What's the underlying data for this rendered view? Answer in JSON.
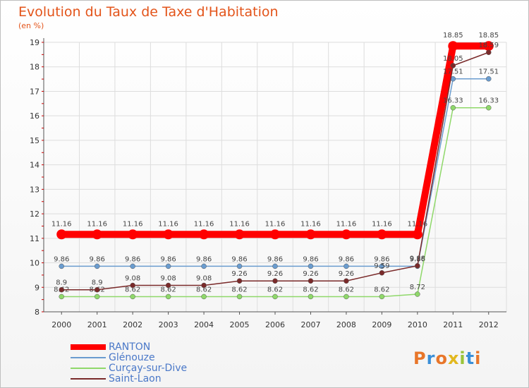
{
  "chart_data": {
    "type": "line",
    "title": "Evolution du Taux de Taxe d'Habitation",
    "unit_label": "(en %)",
    "x": [
      "2000",
      "2001",
      "2002",
      "2003",
      "2004",
      "2005",
      "2006",
      "2007",
      "2008",
      "2009",
      "2010",
      "2011",
      "2012"
    ],
    "ylim": [
      8,
      19
    ],
    "yticks": [
      8,
      9,
      10,
      11,
      12,
      13,
      14,
      15,
      16,
      17,
      18,
      19
    ],
    "grid": true,
    "legend_position": "bottom-left",
    "series": [
      {
        "name": "RANTON",
        "color": "#ff0000",
        "values": [
          11.16,
          11.16,
          11.16,
          11.16,
          11.16,
          11.16,
          11.16,
          11.16,
          11.16,
          11.16,
          11.16,
          18.85,
          18.85
        ]
      },
      {
        "name": "Glénouze",
        "color": "#6a9ccf",
        "values": [
          9.86,
          9.86,
          9.86,
          9.86,
          9.86,
          9.86,
          9.86,
          9.86,
          9.86,
          9.86,
          9.86,
          17.51,
          17.51
        ]
      },
      {
        "name": "Curçay-sur-Dive",
        "color": "#8fd86a",
        "values": [
          8.62,
          8.62,
          8.62,
          8.62,
          8.62,
          8.62,
          8.62,
          8.62,
          8.62,
          8.62,
          8.72,
          16.33,
          16.33
        ]
      },
      {
        "name": "Saint-Laon",
        "color": "#7a2a2a",
        "values": [
          8.9,
          8.9,
          9.08,
          9.08,
          9.08,
          9.26,
          9.26,
          9.26,
          9.26,
          9.59,
          9.88,
          18.05,
          18.59
        ]
      }
    ]
  },
  "logo_text": "Proxiti",
  "logo_colors": [
    "#e8762a",
    "#3a8fd8",
    "#e8762a",
    "#e2b81f",
    "#9ac43a",
    "#3a8fd8",
    "#e8762a"
  ]
}
